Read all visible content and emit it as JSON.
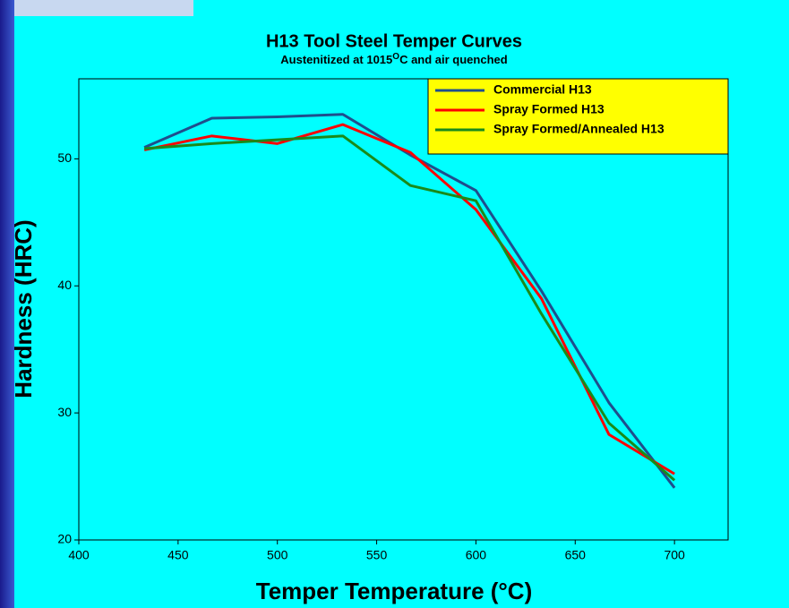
{
  "chart_data": {
    "type": "line",
    "title": "H13 Tool Steel Temper Curves",
    "subtitle": {
      "before": "Austenitized at 1015",
      "sup": "O",
      "after": "C and air quenched"
    },
    "x_label": "Temper Temperature (°C)",
    "y_label": "Hardness (HRC)",
    "x": [
      433,
      467,
      500,
      533,
      567,
      600,
      633,
      667,
      700
    ],
    "series": [
      {
        "name": "Commercial H13",
        "color": "#1f4e8c",
        "values": [
          50.9,
          53.2,
          53.3,
          53.5,
          50.3,
          47.5,
          39.6,
          30.8,
          24.1
        ]
      },
      {
        "name": "Spray Formed H13",
        "color": "#ff0000",
        "values": [
          50.7,
          51.8,
          51.2,
          52.7,
          50.5,
          46.0,
          39.0,
          28.3,
          25.2
        ]
      },
      {
        "name": "Spray Formed/Annealed H13",
        "color": "#1a8a1a",
        "values": [
          50.8,
          51.2,
          51.5,
          51.8,
          47.9,
          46.7,
          37.8,
          29.2,
          24.7
        ]
      }
    ],
    "xlim": [
      400,
      727
    ],
    "xticks": [
      400,
      450,
      500,
      550,
      600,
      650,
      700
    ],
    "ylim": [
      20,
      56.3
    ],
    "yticks": [
      20,
      30,
      40,
      50
    ],
    "legend": "upper right",
    "legend_color": "#ffff00"
  }
}
